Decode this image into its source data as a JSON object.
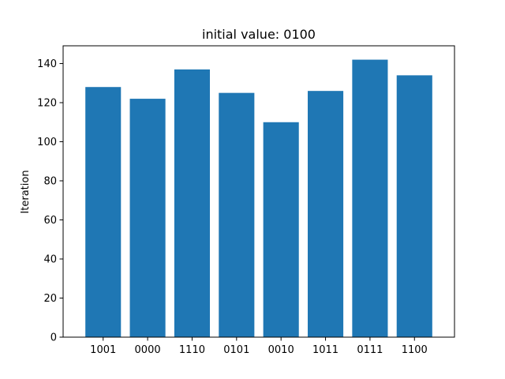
{
  "chart_data": {
    "type": "bar",
    "title": "initial value: 0100",
    "xlabel": "",
    "ylabel": "Iteration",
    "categories": [
      "1001",
      "0000",
      "1110",
      "0101",
      "0010",
      "1011",
      "0111",
      "1100"
    ],
    "values": [
      128,
      122,
      137,
      125,
      110,
      126,
      142,
      134
    ],
    "ylim": [
      0,
      149.1
    ],
    "yticks": [
      0,
      20,
      40,
      60,
      80,
      100,
      120,
      140
    ],
    "bar_color": "#1f77b4",
    "grid": false,
    "legend": "none"
  }
}
